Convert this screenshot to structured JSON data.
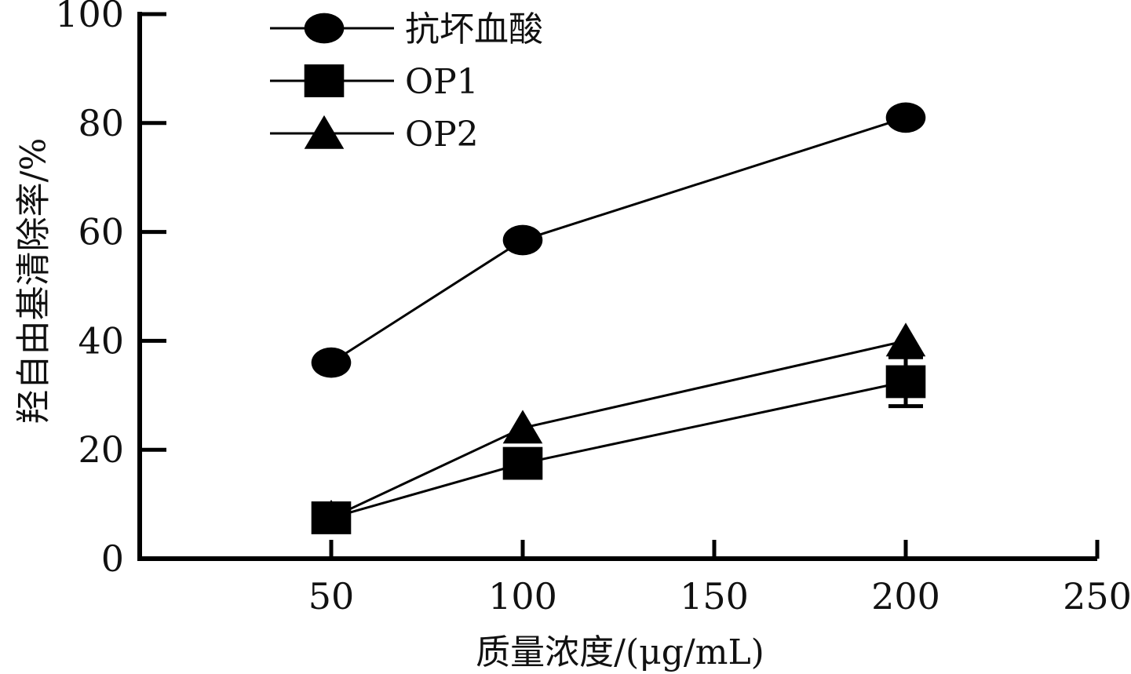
{
  "chart_data": {
    "type": "line",
    "x": [
      50,
      100,
      200
    ],
    "series": [
      {
        "name": "抗坏血酸",
        "marker": "circle",
        "values": [
          36,
          58.5,
          81
        ],
        "error": [
          0,
          0,
          0
        ]
      },
      {
        "name": "OP1",
        "marker": "square",
        "values": [
          7.5,
          17.5,
          32.5
        ],
        "error": [
          0,
          0,
          4.5
        ]
      },
      {
        "name": "OP2",
        "marker": "triangle",
        "values": [
          7.5,
          24,
          40
        ],
        "error": [
          0,
          0,
          0
        ]
      }
    ],
    "xlabel": "质量浓度/(μg/mL)",
    "ylabel": "羟自由基清除率/%",
    "xlim": [
      0,
      250
    ],
    "ylim": [
      0,
      100
    ],
    "xticks": [
      50,
      100,
      150,
      200,
      250
    ],
    "yticks": [
      0,
      20,
      40,
      60,
      80,
      100
    ],
    "grid": false,
    "legend_position": "top-left",
    "color": "#000000"
  }
}
